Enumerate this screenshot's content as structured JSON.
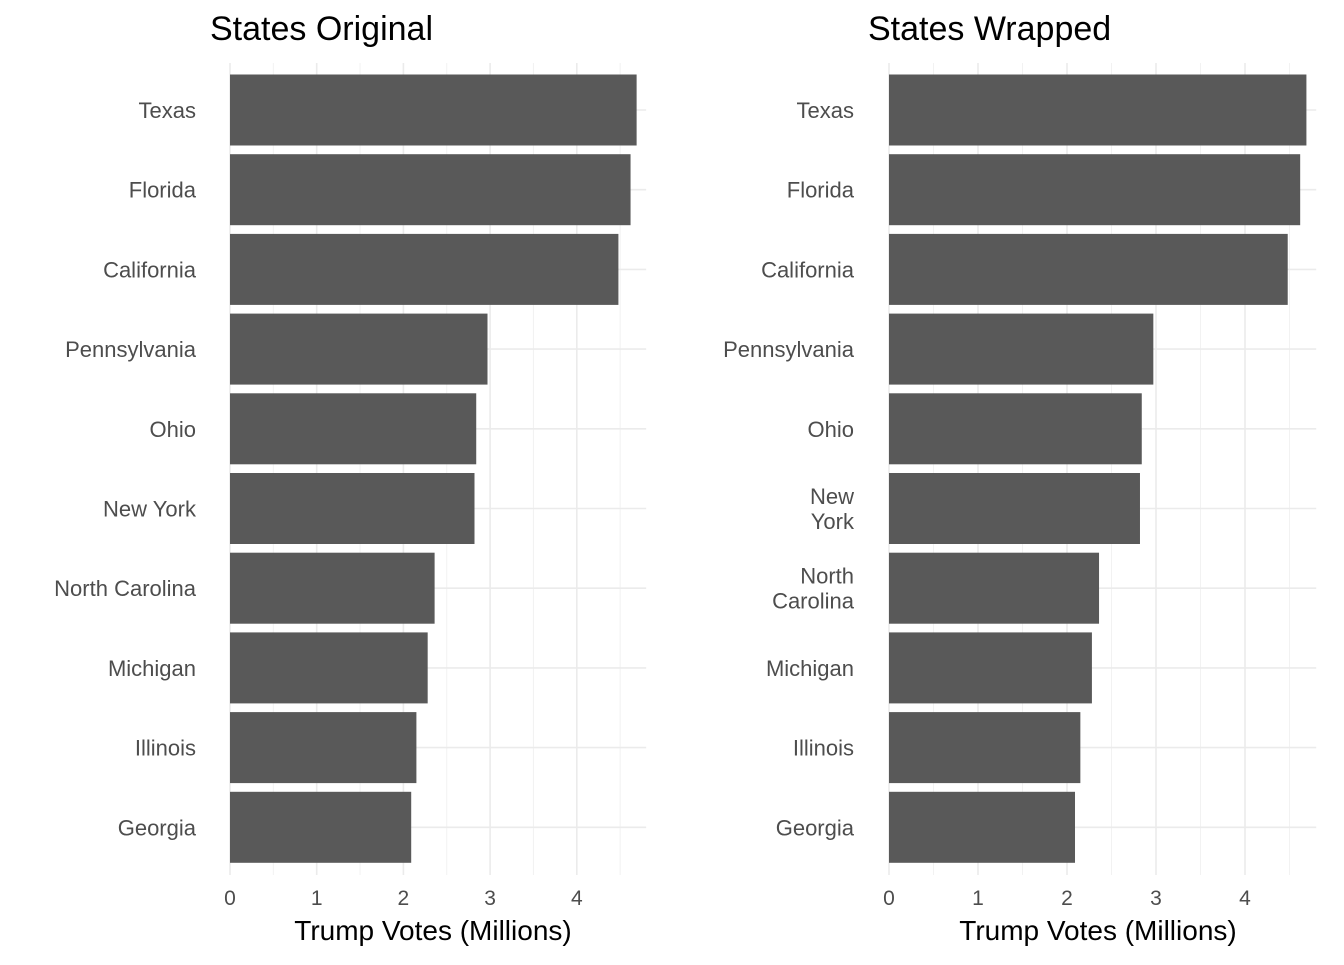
{
  "chart_data": [
    {
      "type": "bar",
      "orientation": "horizontal",
      "title": "States Original",
      "xlabel": "Trump Votes (Millions)",
      "ylabel": "",
      "xlim": [
        0,
        4.8
      ],
      "xticks": [
        0,
        1,
        2,
        3,
        4
      ],
      "categories": [
        "Texas",
        "Florida",
        "California",
        "Pennsylvania",
        "Ohio",
        "New York",
        "North Carolina",
        "Michigan",
        "Illinois",
        "Georgia"
      ],
      "category_lines": [
        [
          "Texas"
        ],
        [
          "Florida"
        ],
        [
          "California"
        ],
        [
          "Pennsylvania"
        ],
        [
          "Ohio"
        ],
        [
          "New York"
        ],
        [
          "North Carolina"
        ],
        [
          "Michigan"
        ],
        [
          "Illinois"
        ],
        [
          "Georgia"
        ]
      ],
      "values": [
        4.69,
        4.62,
        4.48,
        2.97,
        2.84,
        2.82,
        2.36,
        2.28,
        2.15,
        2.09
      ],
      "bar_color": "#595959",
      "grid": true,
      "legend": "none"
    },
    {
      "type": "bar",
      "orientation": "horizontal",
      "title": "States Wrapped",
      "xlabel": "Trump Votes (Millions)",
      "ylabel": "",
      "xlim": [
        0,
        4.8
      ],
      "xticks": [
        0,
        1,
        2,
        3,
        4
      ],
      "categories": [
        "Texas",
        "Florida",
        "California",
        "Pennsylvania",
        "Ohio",
        "New York",
        "North Carolina",
        "Michigan",
        "Illinois",
        "Georgia"
      ],
      "category_lines": [
        [
          "Texas"
        ],
        [
          "Florida"
        ],
        [
          "California"
        ],
        [
          "Pennsylvania"
        ],
        [
          "Ohio"
        ],
        [
          "New",
          "York"
        ],
        [
          "North",
          "Carolina"
        ],
        [
          "Michigan"
        ],
        [
          "Illinois"
        ],
        [
          "Georgia"
        ]
      ],
      "values": [
        4.69,
        4.62,
        4.48,
        2.97,
        2.84,
        2.82,
        2.36,
        2.28,
        2.15,
        2.09
      ],
      "bar_color": "#595959",
      "grid": true,
      "legend": "none"
    }
  ]
}
